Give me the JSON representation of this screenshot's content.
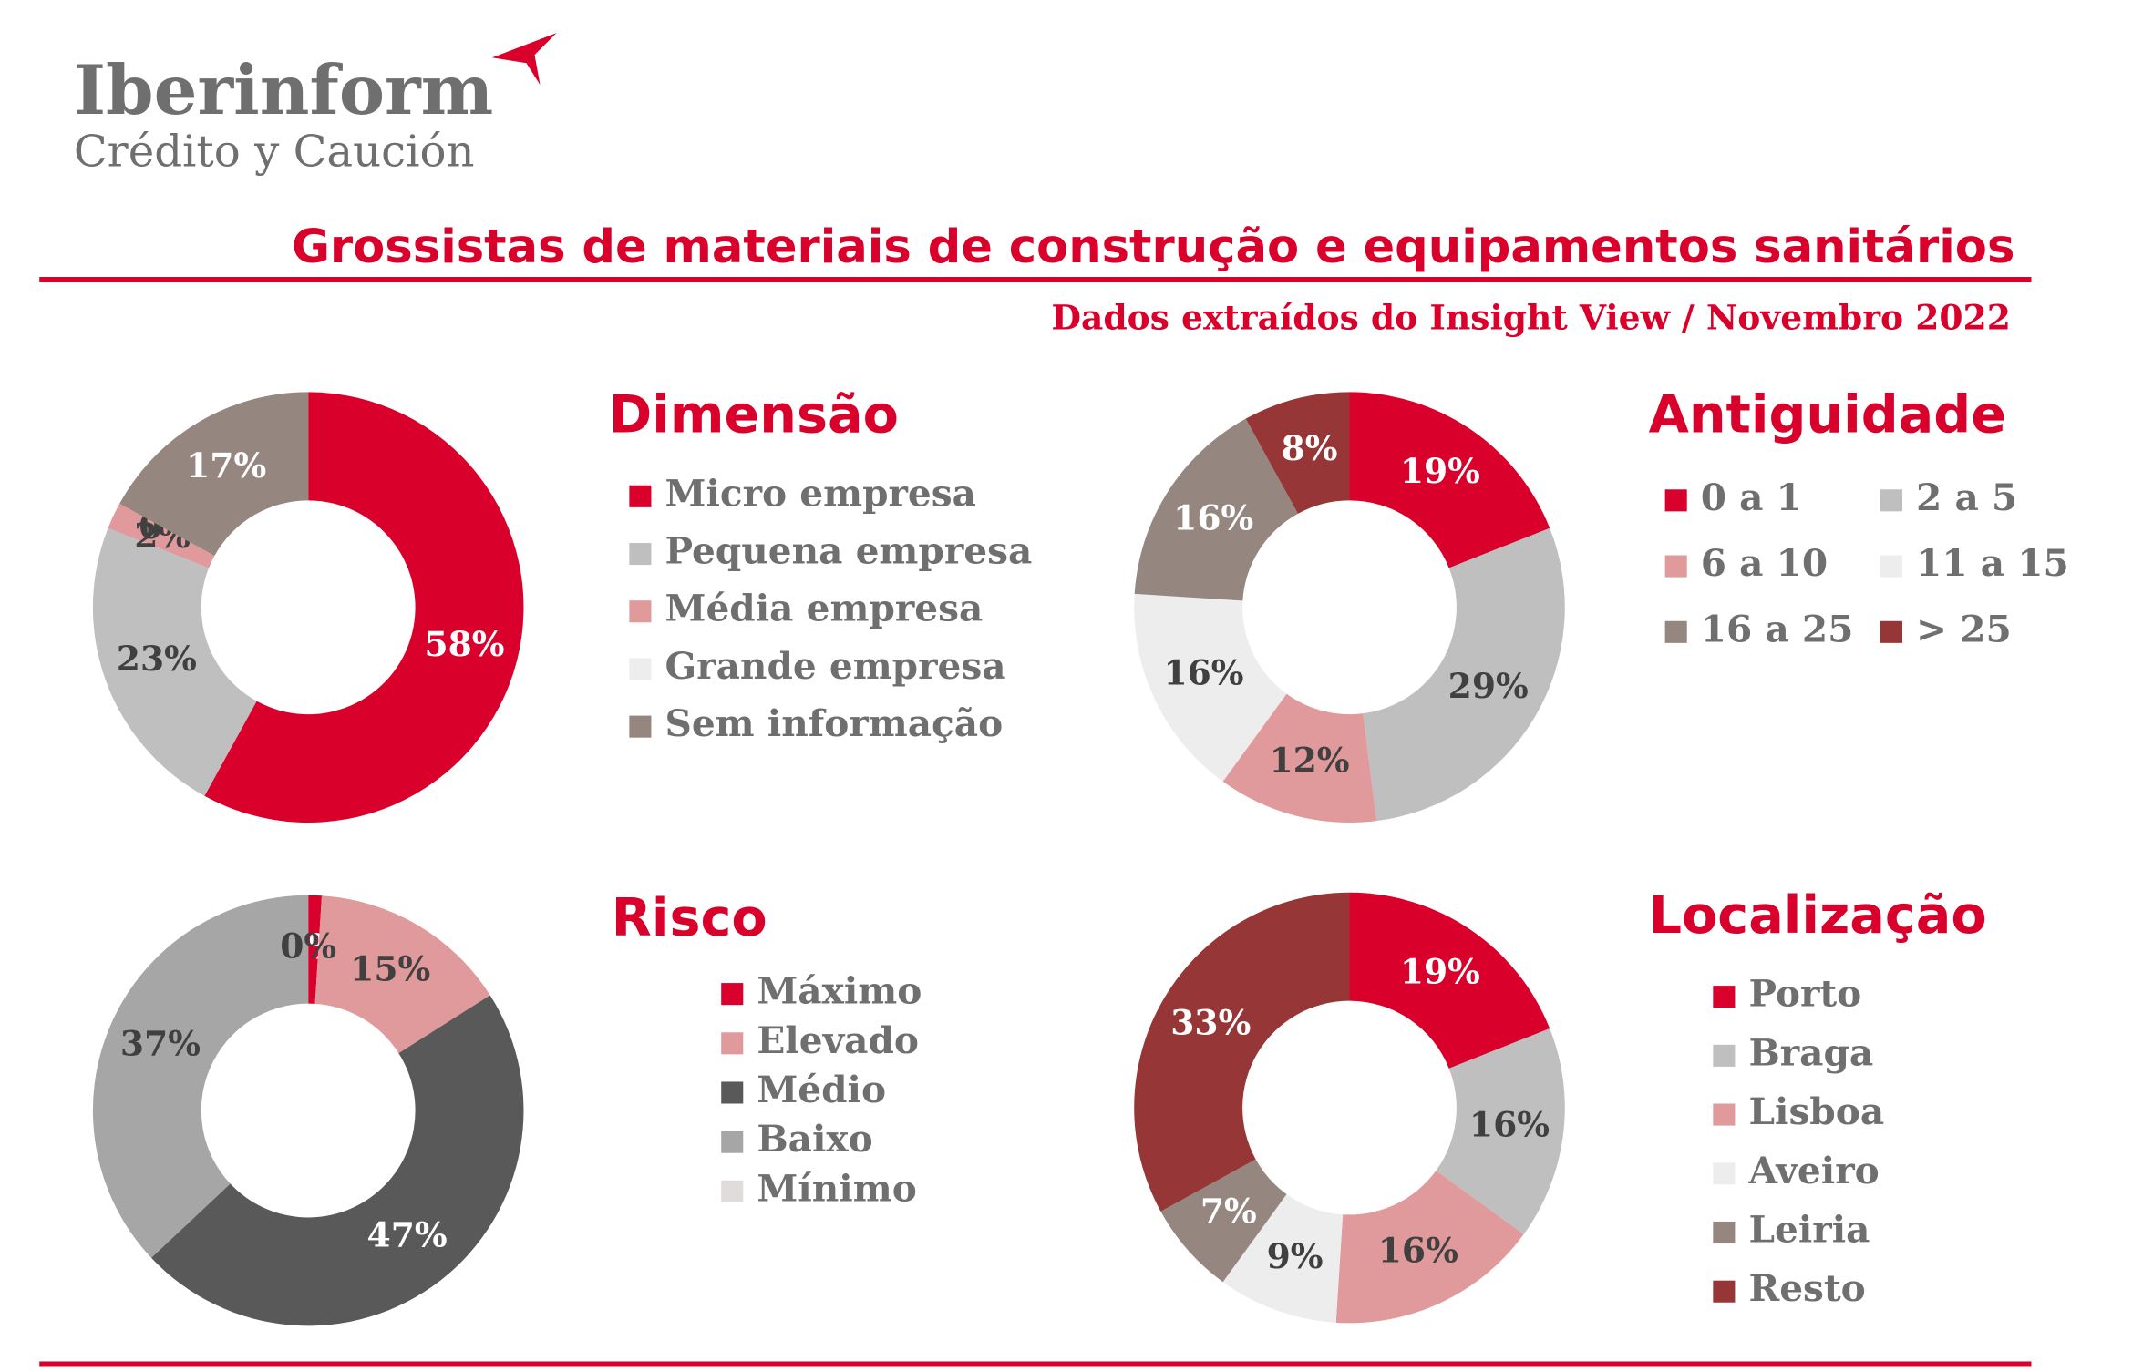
{
  "header": {
    "logo_name": "Iberinform",
    "logo_sub": "Crédito y Caución",
    "title": "Grossistas de materiais de construção e equipamentos sanitários",
    "subtitle": "Dados extraídos do Insight View / Novembro 2022"
  },
  "chart_data": [
    {
      "type": "pie",
      "title": "Dimensão",
      "categories": [
        "Micro empresa",
        "Pequena empresa",
        "Média empresa",
        "Grande empresa",
        "Sem informação"
      ],
      "values": [
        58,
        23,
        2,
        0,
        17
      ],
      "value_labels": [
        "58%",
        "23%",
        "2%",
        "0%",
        "17%"
      ],
      "colors": [
        "#d9002b",
        "#bfbfbf",
        "#e09a9c",
        "#ededed",
        "#958780"
      ]
    },
    {
      "type": "pie",
      "title": "Antiguidade",
      "categories": [
        "0 a 1",
        "2 a 5",
        "6 a 10",
        "11 a 15",
        "16 a 25",
        "> 25"
      ],
      "values": [
        19,
        29,
        12,
        16,
        16,
        8
      ],
      "value_labels": [
        "19%",
        "29%",
        "12%",
        "16%",
        "16%",
        "8%"
      ],
      "colors": [
        "#d9002b",
        "#bfbfbf",
        "#e09a9c",
        "#ededed",
        "#958780",
        "#963636"
      ]
    },
    {
      "type": "pie",
      "title": "Risco",
      "categories": [
        "Máximo",
        "Elevado",
        "Médio",
        "Baixo",
        "Mínimo"
      ],
      "values": [
        1,
        15,
        47,
        37,
        0
      ],
      "value_labels": [
        "1%",
        "15%",
        "47%",
        "37%",
        "0%"
      ],
      "colors": [
        "#d9002b",
        "#e09a9c",
        "#595959",
        "#a6a6a6",
        "#e0dcdc"
      ]
    },
    {
      "type": "pie",
      "title": "Localização",
      "categories": [
        "Porto",
        "Braga",
        "Lisboa",
        "Aveiro",
        "Leiria",
        "Resto"
      ],
      "values": [
        19,
        16,
        16,
        9,
        7,
        33
      ],
      "value_labels": [
        "19%",
        "16%",
        "16%",
        "9%",
        "7%",
        "33%"
      ],
      "colors": [
        "#d9002b",
        "#bfbfbf",
        "#e09a9c",
        "#ededed",
        "#958780",
        "#963636"
      ]
    }
  ]
}
